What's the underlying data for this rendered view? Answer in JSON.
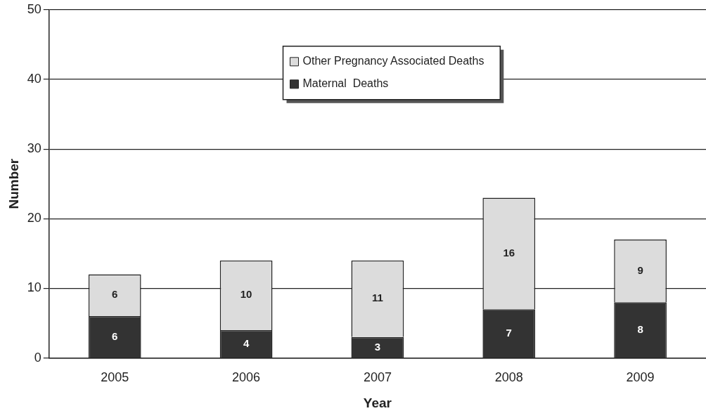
{
  "chart_data": {
    "type": "bar",
    "xlabel": "Year",
    "ylabel": "Number",
    "categories": [
      "2005",
      "2006",
      "2007",
      "2008",
      "2009"
    ],
    "series": [
      {
        "name": "Maternal  Deaths",
        "color": "#333333",
        "values": [
          6,
          4,
          3,
          7,
          8
        ]
      },
      {
        "name": "Other Pregnancy Associated Deaths",
        "color": "#dcdcdc",
        "values": [
          6,
          10,
          11,
          16,
          9
        ]
      }
    ],
    "stacked": true,
    "ylim": [
      0,
      50
    ],
    "yticks": [
      0,
      10,
      20,
      30,
      40,
      50
    ],
    "grid": "y",
    "legend": "top",
    "data_labels": true
  }
}
